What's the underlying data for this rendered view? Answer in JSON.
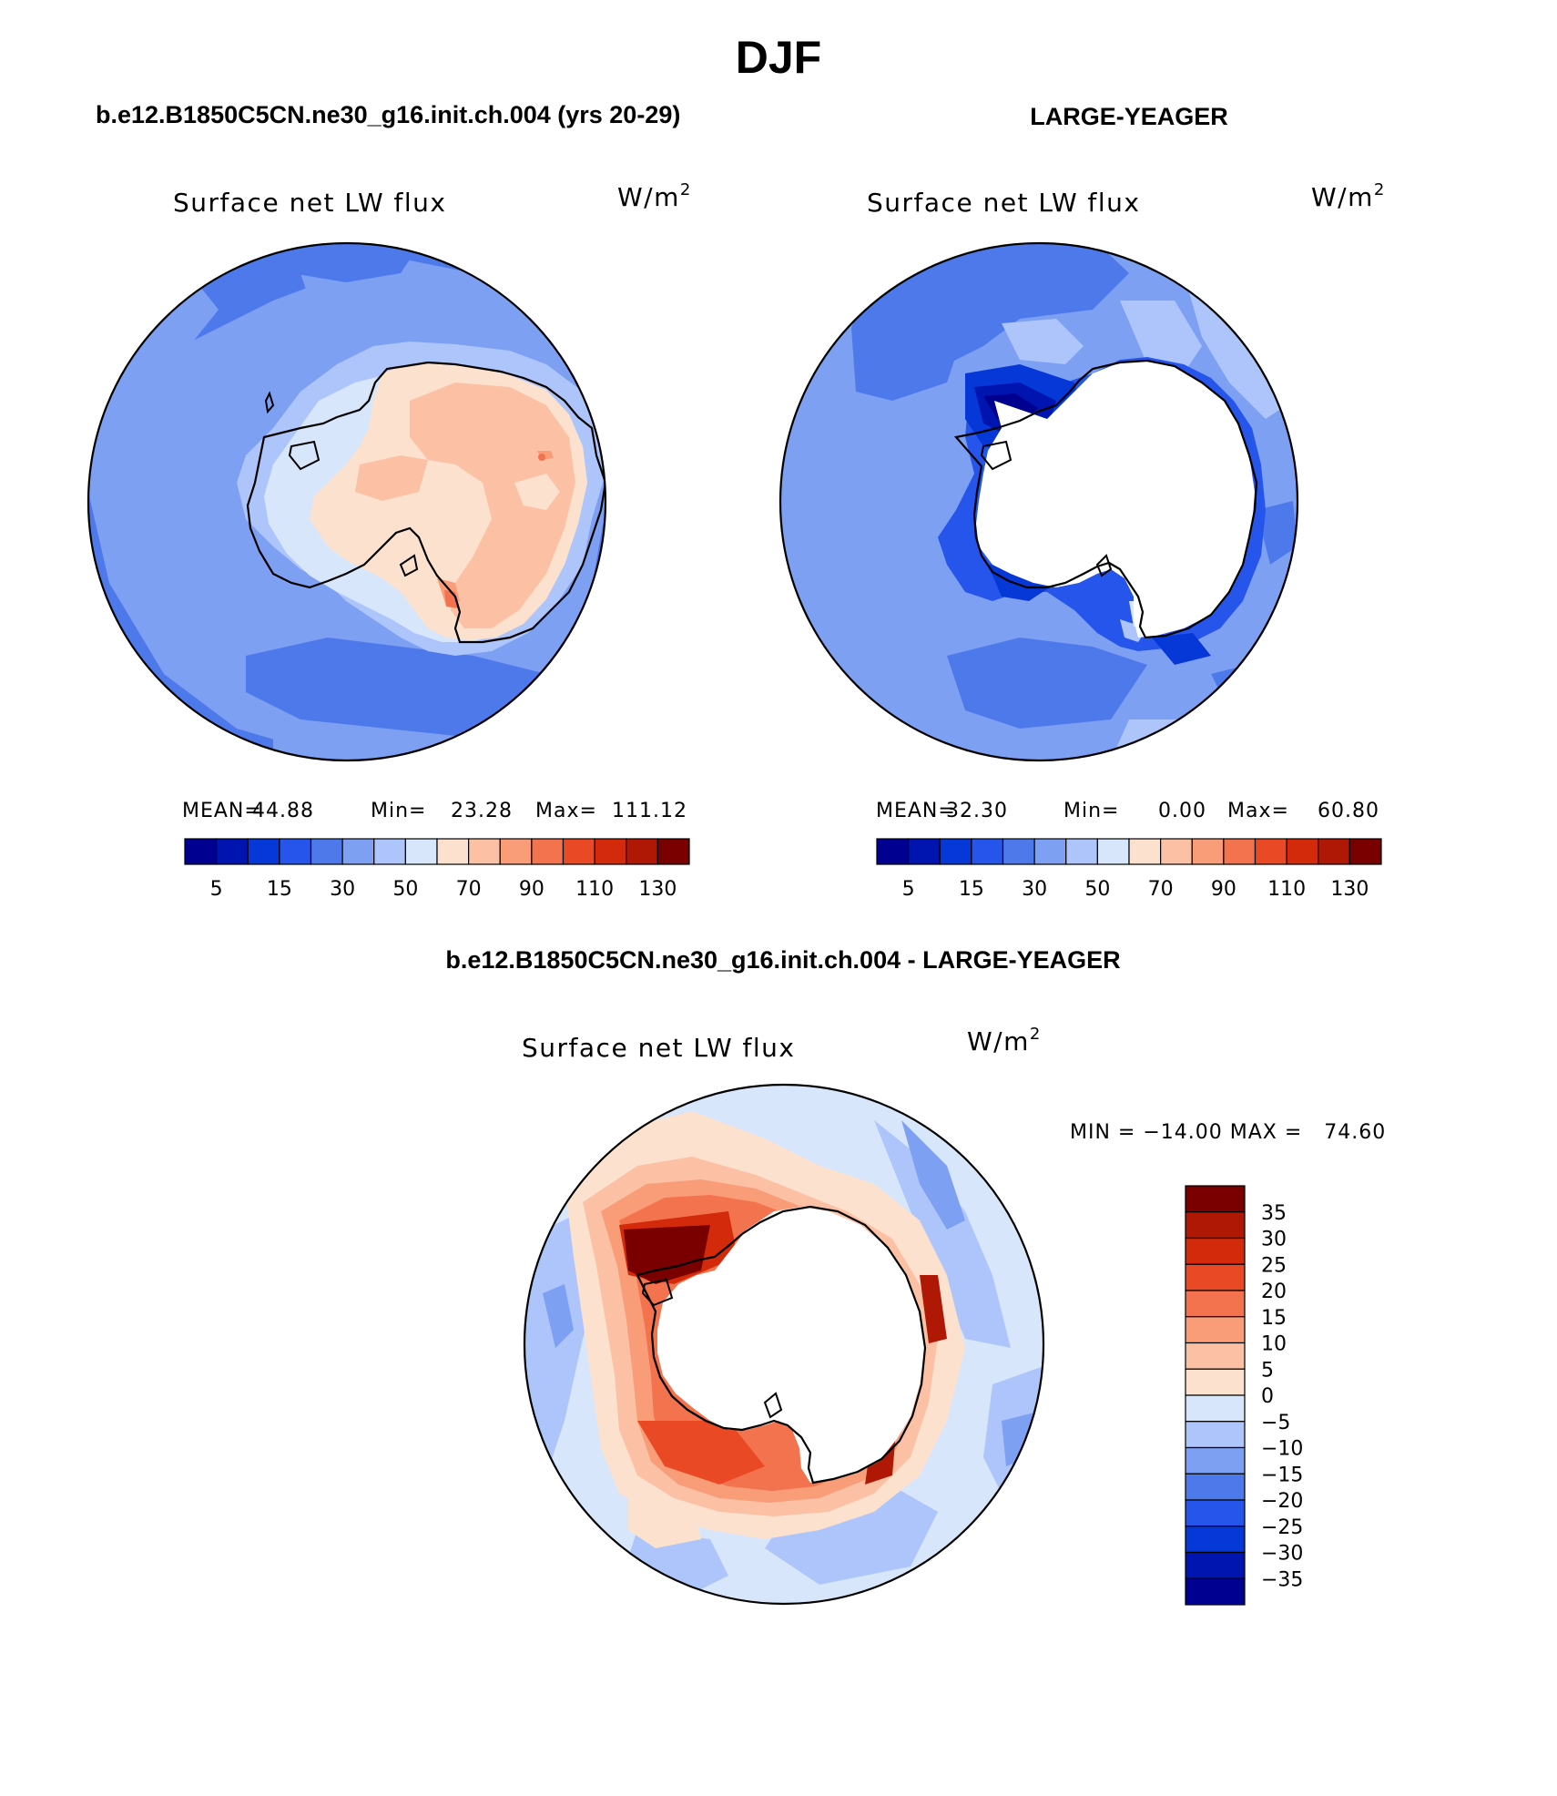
{
  "page": {
    "title": "DJF"
  },
  "panels": [
    {
      "heading": "b.e12.B1850C5CN.ne30_g16.init.ch.004 (yrs 20-29)",
      "variable": "Surface net LW flux",
      "units": "W/m",
      "units_sup": "2",
      "stats": {
        "mean_label": "MEAN=",
        "mean": "44.88",
        "min_label": "Min=",
        "min": "23.28",
        "max_label": "Max=",
        "max": "111.12"
      },
      "colorbar_ticks": [
        "5",
        "15",
        "30",
        "50",
        "70",
        "90",
        "110",
        "130"
      ],
      "field_range": [
        23.28,
        111.12
      ]
    },
    {
      "heading": "LARGE-YEAGER",
      "variable": "Surface net LW flux",
      "units": "W/m",
      "units_sup": "2",
      "stats": {
        "mean_label": "MEAN=",
        "mean": "32.30",
        "min_label": "Min=",
        "min": "0.00",
        "max_label": "Max=",
        "max": "60.80"
      },
      "colorbar_ticks": [
        "5",
        "15",
        "30",
        "50",
        "70",
        "90",
        "110",
        "130"
      ],
      "field_range": [
        0.0,
        60.8
      ]
    },
    {
      "heading": "b.e12.B1850C5CN.ne30_g16.init.ch.004 - LARGE-YEAGER",
      "variable": "Surface net LW flux",
      "units": "W/m",
      "units_sup": "2",
      "stats": {
        "minmax_text": "MIN = −14.00 MAX =   74.60"
      },
      "colorbar_ticks": [
        "35",
        "30",
        "25",
        "20",
        "15",
        "10",
        "5",
        "0",
        "−5",
        "−10",
        "−15",
        "−20",
        "−25",
        "−30",
        "−35"
      ],
      "field_range": [
        -14.0,
        74.6
      ]
    }
  ],
  "colors": {
    "abs_scale": [
      "#000090",
      "#0015b0",
      "#0638d8",
      "#2555ea",
      "#4e79ea",
      "#7ea0f3",
      "#adc5fa",
      "#d7e6fb",
      "#fde1cf",
      "#fcc1a5",
      "#f99c78",
      "#f2734d",
      "#e94a25",
      "#d22a0b",
      "#ae1805",
      "#7a0000"
    ],
    "diff_scale": [
      "#000090",
      "#0015b0",
      "#0638d8",
      "#2555ea",
      "#4e79ea",
      "#7ea0f3",
      "#adc5fa",
      "#d7e6fb",
      "#fde1cf",
      "#fcc1a5",
      "#f99c78",
      "#f2734d",
      "#e94a25",
      "#d22a0b",
      "#ae1805",
      "#7a0000"
    ],
    "coast": "#000000",
    "land_masked": "#ffffff"
  }
}
